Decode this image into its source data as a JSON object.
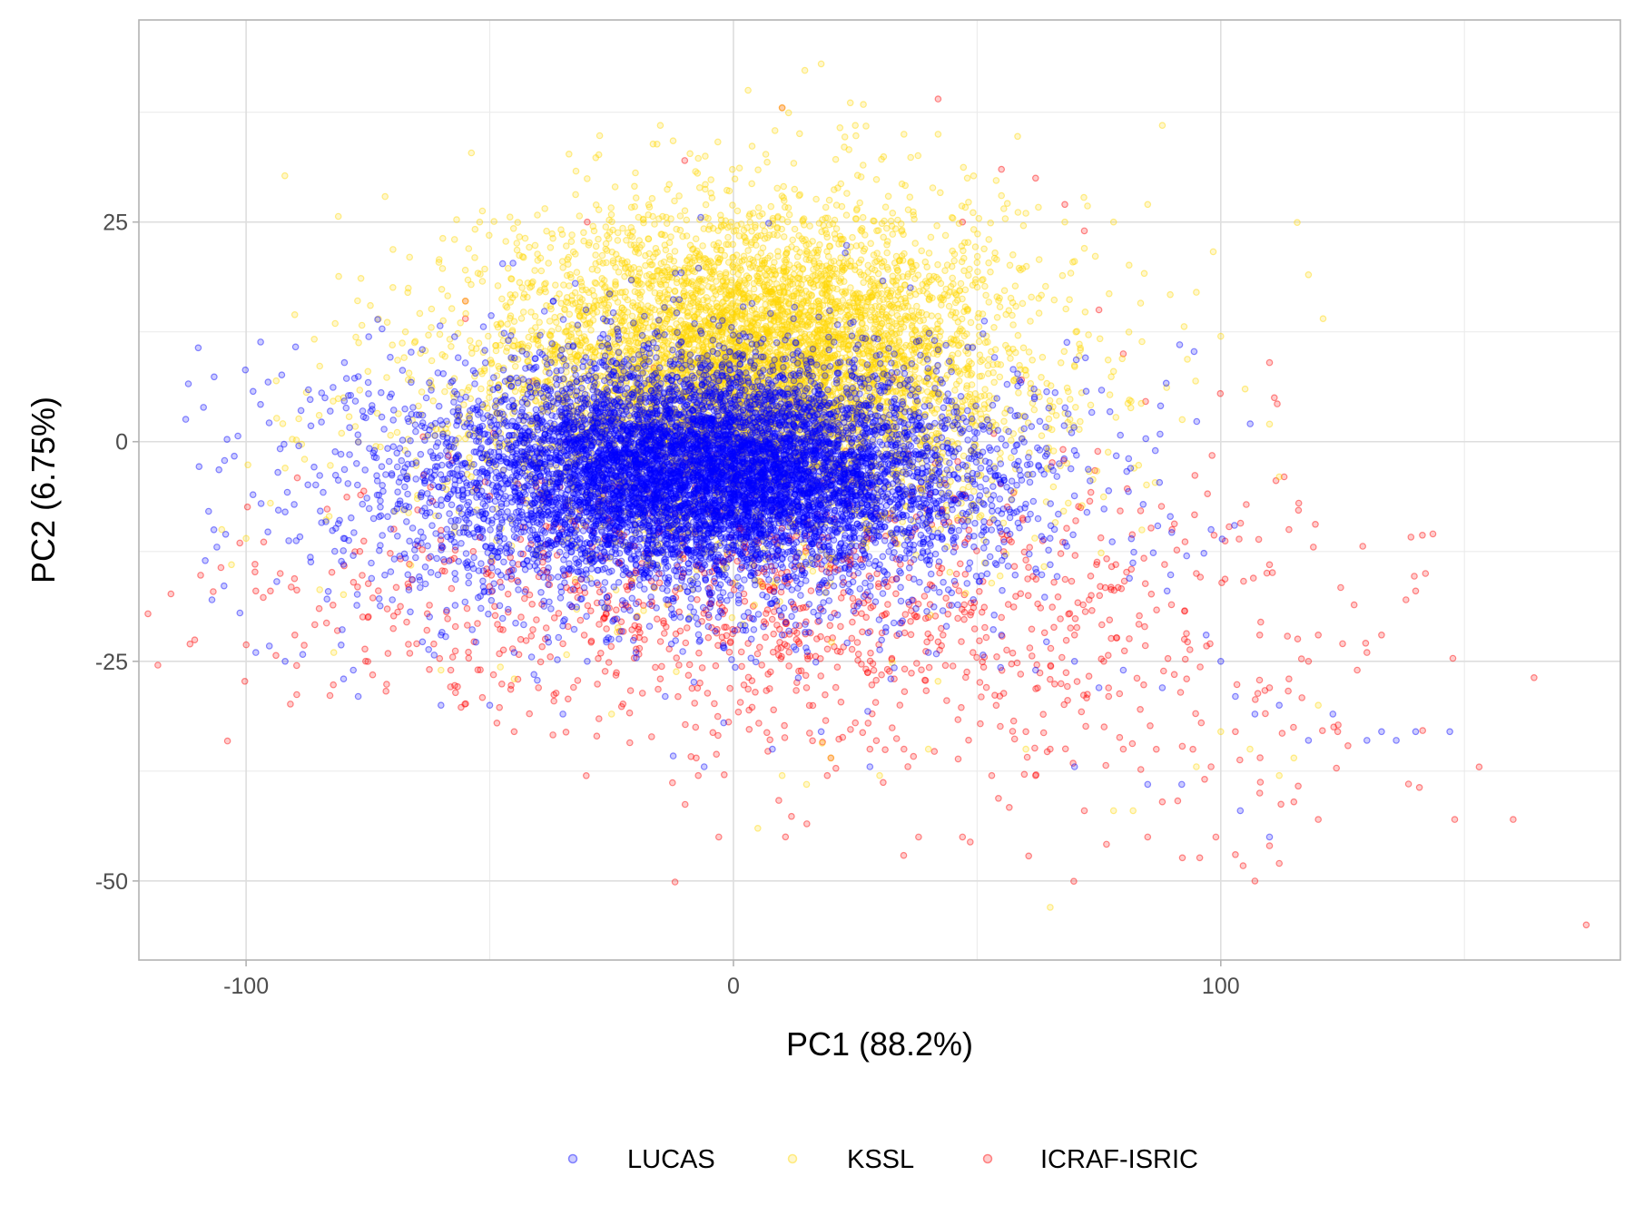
{
  "chart_data": {
    "type": "scatter",
    "title": "",
    "xlabel": "PC1 (88.2%)",
    "ylabel": "PC2 (6.75%)",
    "xlim": [
      -122,
      182
    ],
    "ylim": [
      -59,
      48
    ],
    "x_ticks": [
      -100,
      0,
      100
    ],
    "x_tick_labels": [
      "-100",
      "0",
      "100"
    ],
    "y_ticks": [
      25,
      0,
      -25,
      -50
    ],
    "y_tick_labels": [
      "25",
      "0",
      "-25",
      "-50"
    ],
    "grid": true,
    "legend_position": "bottom",
    "point_opacity": 0.2,
    "draw_order": [
      "ICRAF-ISRIC",
      "KSSL",
      "LUCAS"
    ],
    "series": [
      {
        "name": "LUCAS",
        "color": "#0000ff",
        "note_distribution": "dense core",
        "core": {
          "cx": -5,
          "cy": -3,
          "sx": 24,
          "sy": 5.5,
          "n": 5500
        },
        "spread": {
          "cx": -8,
          "cy": -5,
          "sx": 36,
          "sy": 8,
          "n": 3200
        },
        "points": [
          [
            -107,
            -18
          ],
          [
            -106,
            -12
          ],
          [
            -98,
            -24
          ],
          [
            -92,
            -25
          ],
          [
            -80,
            -27
          ],
          [
            -78,
            -26
          ],
          [
            -77,
            -29
          ],
          [
            -60,
            -30
          ],
          [
            -50,
            -30
          ],
          [
            -35,
            -31
          ],
          [
            -14,
            -29
          ],
          [
            -6,
            -37
          ],
          [
            -2,
            -32
          ],
          [
            8,
            -35
          ],
          [
            18,
            -33
          ],
          [
            28,
            -37
          ],
          [
            70,
            -37
          ],
          [
            85,
            -39
          ],
          [
            92,
            -39
          ],
          [
            104,
            -42
          ],
          [
            110,
            -45
          ],
          [
            118,
            -34
          ],
          [
            123,
            -31
          ],
          [
            130,
            -34
          ],
          [
            133,
            -33
          ],
          [
            136,
            -34
          ],
          [
            140,
            -33
          ],
          [
            147,
            -33
          ],
          [
            -80,
            -11
          ],
          [
            -92,
            -8
          ],
          [
            -70,
            -18
          ],
          [
            -60,
            -22
          ],
          [
            -45,
            -24
          ],
          [
            -30,
            -25
          ],
          [
            -20,
            -24
          ],
          [
            10,
            -22
          ],
          [
            20,
            -20
          ],
          [
            40,
            -24
          ],
          [
            55,
            -22
          ],
          [
            62,
            -26
          ],
          [
            70,
            -25
          ],
          [
            75,
            -28
          ],
          [
            80,
            -26
          ],
          [
            88,
            -28
          ],
          [
            97,
            -22
          ],
          [
            100,
            -25
          ],
          [
            103,
            -29
          ],
          [
            107,
            -31
          ],
          [
            112,
            -30
          ],
          [
            89,
            -17
          ],
          [
            93,
            -13
          ],
          [
            98,
            -10
          ],
          [
            65,
            -14
          ]
        ]
      },
      {
        "name": "KSSL",
        "color": "#ffd700",
        "note_distribution": "broad cloud above the core",
        "core": {
          "cx": 0,
          "cy": 6,
          "sx": 30,
          "sy": 9,
          "n": 4200
        },
        "spread": {
          "cx": 8,
          "cy": 12,
          "sx": 22,
          "sy": 8,
          "n": 2200
        },
        "points": [
          [
            18,
            43
          ],
          [
            10,
            38
          ],
          [
            3,
            40
          ],
          [
            -15,
            36
          ],
          [
            25,
            36
          ],
          [
            35,
            35
          ],
          [
            42,
            35
          ],
          [
            48,
            30
          ],
          [
            55,
            28
          ],
          [
            60,
            26
          ],
          [
            68,
            25
          ],
          [
            72,
            22
          ],
          [
            78,
            25
          ],
          [
            85,
            27
          ],
          [
            88,
            36
          ],
          [
            95,
            17
          ],
          [
            100,
            12
          ],
          [
            105,
            6
          ],
          [
            110,
            2
          ],
          [
            112,
            -4
          ],
          [
            118,
            19
          ],
          [
            121,
            14
          ],
          [
            -105,
            -10
          ],
          [
            -103,
            -14
          ],
          [
            -100,
            -11
          ],
          [
            -95,
            -7
          ],
          [
            -92,
            -3
          ],
          [
            -88,
            -2
          ],
          [
            -85,
            3
          ],
          [
            -80,
            5
          ],
          [
            -75,
            8
          ],
          [
            -70,
            11
          ],
          [
            -62,
            13
          ],
          [
            -55,
            16
          ],
          [
            5,
            -44
          ],
          [
            10,
            -38
          ],
          [
            15,
            -39
          ],
          [
            20,
            -36
          ],
          [
            30,
            -38
          ],
          [
            40,
            -35
          ],
          [
            60,
            -35
          ],
          [
            65,
            -53
          ],
          [
            78,
            -42
          ],
          [
            82,
            -42
          ],
          [
            95,
            -37
          ],
          [
            100,
            -33
          ],
          [
            106,
            -35
          ],
          [
            112,
            -38
          ],
          [
            115,
            -36
          ],
          [
            120,
            -30
          ],
          [
            -25,
            -31
          ],
          [
            -45,
            -27
          ],
          [
            -60,
            -26
          ],
          [
            -82,
            -24
          ]
        ]
      },
      {
        "name": "ICRAF-ISRIC",
        "color": "#ff0000",
        "note_distribution": "sparse lower band",
        "core": {
          "cx": 0,
          "cy": -18,
          "sx": 45,
          "sy": 8,
          "n": 900
        },
        "spread": {
          "cx": 60,
          "cy": -25,
          "sx": 40,
          "sy": 12,
          "n": 250
        },
        "points": [
          [
            42,
            39
          ],
          [
            10,
            38
          ],
          [
            -10,
            32
          ],
          [
            -30,
            25
          ],
          [
            -55,
            16
          ],
          [
            -55,
            14
          ],
          [
            -93,
            -15
          ],
          [
            -95,
            -17
          ],
          [
            -90,
            -22
          ],
          [
            -98,
            -17
          ],
          [
            -3,
            -45
          ],
          [
            20,
            -36
          ],
          [
            28,
            -35
          ],
          [
            35,
            -35
          ],
          [
            38,
            -45
          ],
          [
            47,
            -45
          ],
          [
            53,
            -38
          ],
          [
            60,
            -33
          ],
          [
            62,
            -38
          ],
          [
            65,
            -35
          ],
          [
            72,
            -42
          ],
          [
            80,
            -35
          ],
          [
            85,
            -45
          ],
          [
            88,
            -41
          ],
          [
            98,
            -37
          ],
          [
            99,
            -45
          ],
          [
            103,
            -47
          ],
          [
            107,
            -50
          ],
          [
            108,
            -40
          ],
          [
            110,
            -46
          ],
          [
            112,
            -48
          ],
          [
            115,
            -41
          ],
          [
            120,
            -43
          ],
          [
            124,
            -33
          ],
          [
            128,
            -26
          ],
          [
            125,
            -23
          ],
          [
            130,
            -24
          ],
          [
            133,
            -22
          ],
          [
            138,
            -18
          ],
          [
            140,
            -17
          ],
          [
            142,
            -15
          ],
          [
            148,
            -43
          ],
          [
            160,
            -43
          ],
          [
            175,
            -55
          ],
          [
            103,
            -33
          ],
          [
            96,
            -32
          ],
          [
            93,
            -27
          ],
          [
            110,
            -28
          ],
          [
            114,
            -27
          ],
          [
            118,
            -25
          ],
          [
            120,
            -22
          ],
          [
            108,
            -22
          ],
          [
            110,
            -14
          ],
          [
            114,
            -10
          ],
          [
            116,
            -7
          ],
          [
            119,
            -12
          ],
          [
            111,
            5
          ],
          [
            110,
            9
          ],
          [
            113,
            -4
          ],
          [
            70,
            -22
          ],
          [
            55,
            -20
          ],
          [
            73,
            -18
          ],
          [
            76,
            -25
          ],
          [
            77,
            -29
          ],
          [
            43,
            -22
          ],
          [
            40,
            -20
          ],
          [
            -35,
            -23
          ],
          [
            -40,
            -28
          ],
          [
            -45,
            -33
          ],
          [
            -58,
            -26
          ],
          [
            -65,
            -23
          ],
          [
            -75,
            -20
          ],
          [
            -85,
            -19
          ],
          [
            -15,
            -27
          ],
          [
            -5,
            -20
          ],
          [
            15,
            -28
          ],
          [
            25,
            -32
          ],
          [
            33,
            -27
          ],
          [
            68,
            27
          ],
          [
            62,
            30
          ],
          [
            55,
            31
          ],
          [
            47,
            25
          ],
          [
            72,
            24
          ],
          [
            75,
            15
          ],
          [
            80,
            10
          ],
          [
            90,
            -10
          ],
          [
            95,
            -15
          ]
        ]
      }
    ]
  }
}
